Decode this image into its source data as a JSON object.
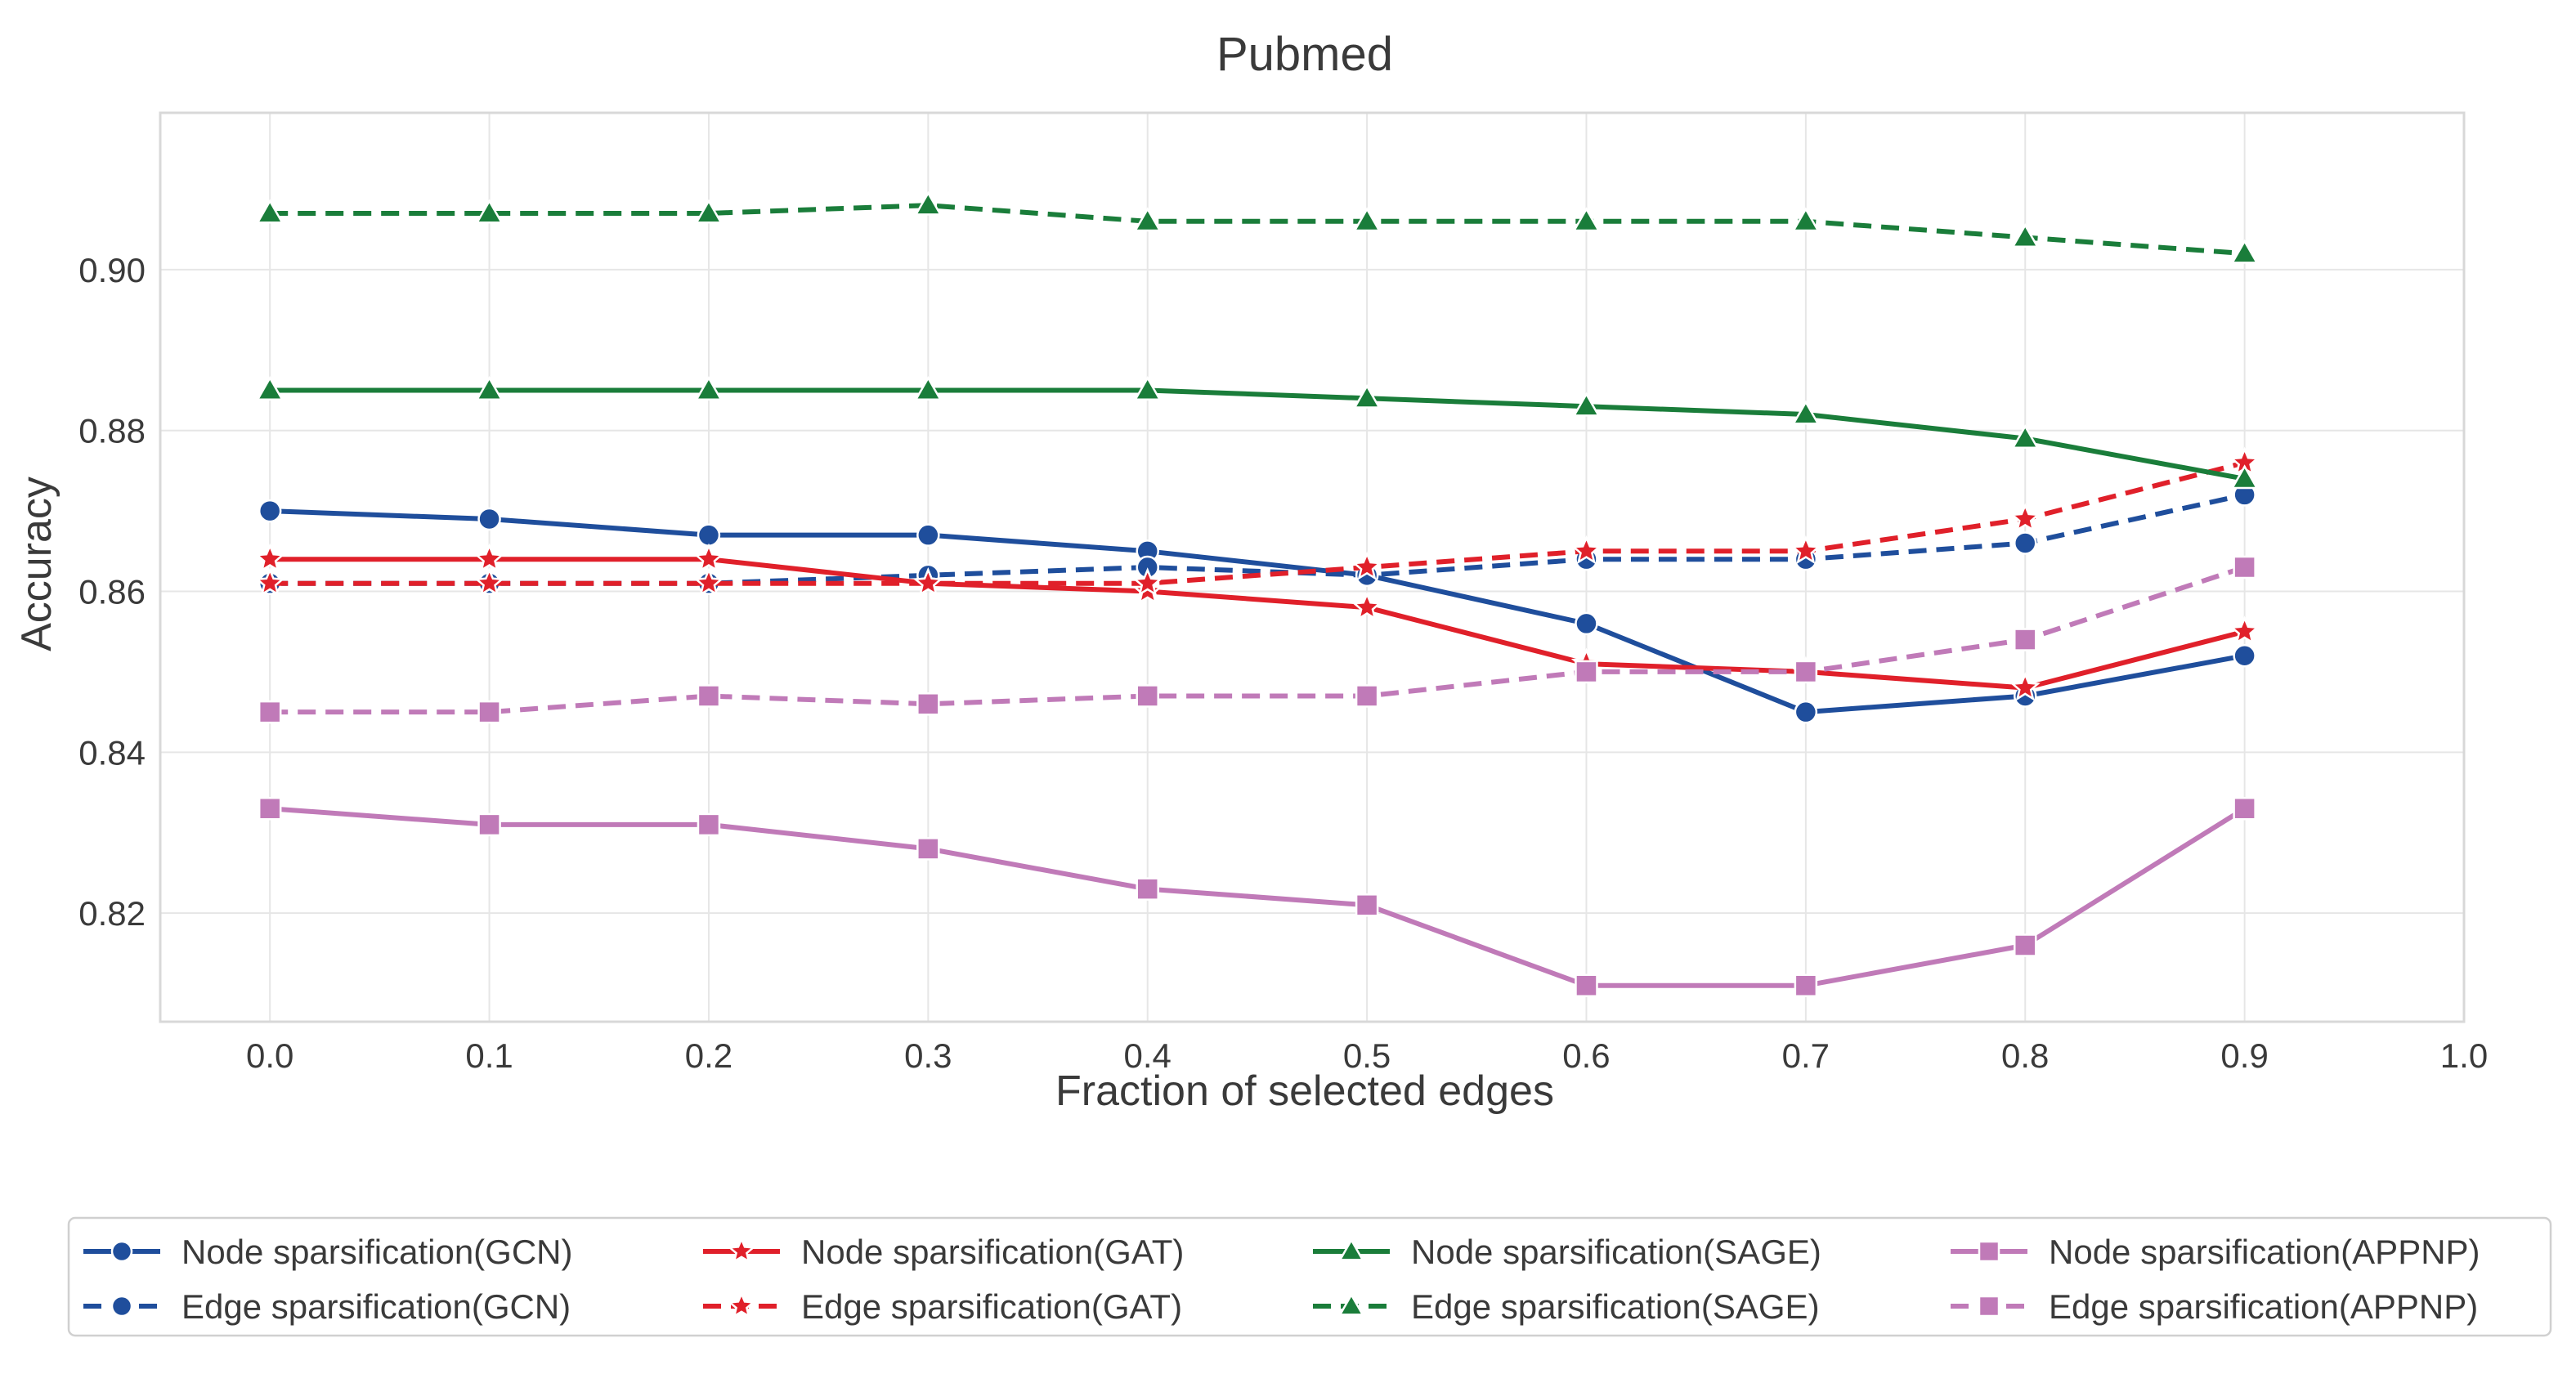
{
  "chart_data": {
    "type": "line",
    "title": "Pubmed",
    "xlabel": "Fraction of selected edges",
    "ylabel": "Accuracy",
    "x": [
      0.0,
      0.1,
      0.2,
      0.3,
      0.4,
      0.5,
      0.6,
      0.7,
      0.8,
      0.9
    ],
    "xlim": [
      -0.05,
      1.0
    ],
    "ylim": [
      0.8065,
      0.9195
    ],
    "xticks": [
      0.0,
      0.1,
      0.2,
      0.3,
      0.4,
      0.5,
      0.6,
      0.7,
      0.8,
      0.9,
      1.0
    ],
    "xtick_labels": [
      "0.0",
      "0.1",
      "0.2",
      "0.3",
      "0.4",
      "0.5",
      "0.6",
      "0.7",
      "0.8",
      "0.9",
      "1.0"
    ],
    "yticks": [
      0.82,
      0.84,
      0.86,
      0.88,
      0.9
    ],
    "ytick_labels": [
      "0.82",
      "0.84",
      "0.86",
      "0.88",
      "0.90"
    ],
    "grid": true,
    "legend_position": "bottom-center",
    "series": [
      {
        "name": "Node sparsification(GCN)",
        "color": "#1f4e9c",
        "dash": "solid",
        "marker": "circle",
        "values": [
          0.87,
          0.869,
          0.867,
          0.867,
          0.865,
          0.862,
          0.856,
          0.845,
          0.847,
          0.852
        ]
      },
      {
        "name": "Edge sparsification(GCN)",
        "color": "#1f4e9c",
        "dash": "dashed",
        "marker": "circle",
        "values": [
          0.861,
          0.861,
          0.861,
          0.862,
          0.863,
          0.862,
          0.864,
          0.864,
          0.866,
          0.872
        ]
      },
      {
        "name": "Node sparsification(GAT)",
        "color": "#e0202a",
        "dash": "solid",
        "marker": "star",
        "values": [
          0.864,
          0.864,
          0.864,
          0.861,
          0.86,
          0.858,
          0.851,
          0.85,
          0.848,
          0.855
        ]
      },
      {
        "name": "Edge sparsification(GAT)",
        "color": "#e0202a",
        "dash": "dashed",
        "marker": "star",
        "values": [
          0.861,
          0.861,
          0.861,
          0.861,
          0.861,
          0.863,
          0.865,
          0.865,
          0.869,
          0.876
        ]
      },
      {
        "name": "Node sparsification(SAGE)",
        "color": "#1a7d3a",
        "dash": "solid",
        "marker": "triangle",
        "values": [
          0.885,
          0.885,
          0.885,
          0.885,
          0.885,
          0.884,
          0.883,
          0.882,
          0.879,
          0.874
        ]
      },
      {
        "name": "Edge sparsification(SAGE)",
        "color": "#1a7d3a",
        "dash": "dashed",
        "marker": "triangle",
        "values": [
          0.907,
          0.907,
          0.907,
          0.908,
          0.906,
          0.906,
          0.906,
          0.906,
          0.904,
          0.902
        ]
      },
      {
        "name": "Node sparsification(APPNP)",
        "color": "#c07ab8",
        "dash": "solid",
        "marker": "square",
        "values": [
          0.833,
          0.831,
          0.831,
          0.828,
          0.823,
          0.821,
          0.811,
          0.811,
          0.816,
          0.833
        ]
      },
      {
        "name": "Edge sparsification(APPNP)",
        "color": "#c07ab8",
        "dash": "dashed",
        "marker": "square",
        "values": [
          0.845,
          0.845,
          0.847,
          0.846,
          0.847,
          0.847,
          0.85,
          0.85,
          0.854,
          0.863
        ]
      }
    ]
  }
}
